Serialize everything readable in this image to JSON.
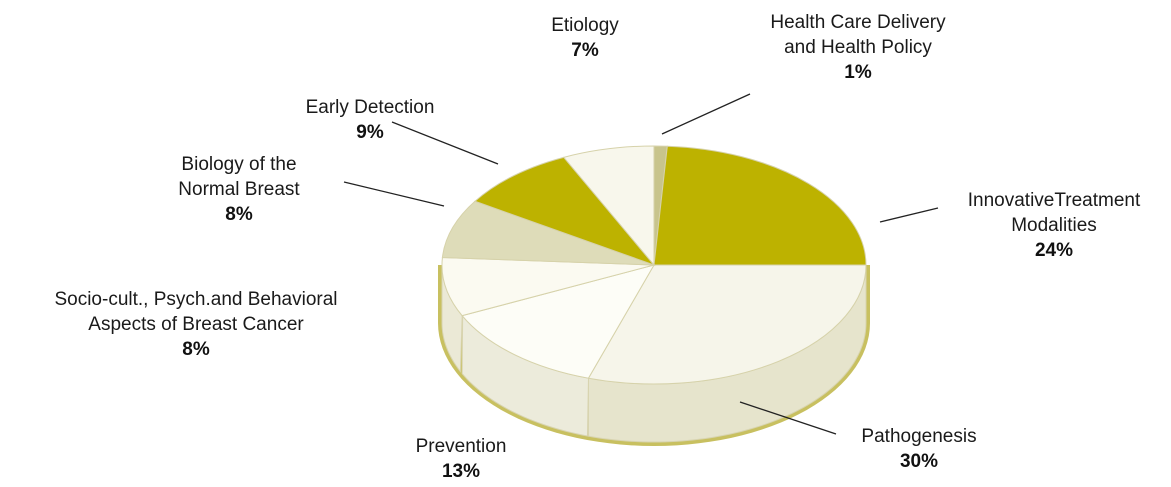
{
  "chart_data": {
    "type": "pie",
    "title": "",
    "slices": [
      {
        "name": "Health Care Delivery and Health Policy",
        "label_lines": [
          "Health Care Delivery",
          "and Health Policy"
        ],
        "value": 1,
        "value_label": "1%",
        "color": "#c8c48c",
        "side_color": "#a7a162"
      },
      {
        "name": "Innovative Treatment Modalities",
        "label_lines": [
          "InnovativeTreatment",
          "Modalities"
        ],
        "value": 24,
        "value_label": "24%",
        "color": "#bdb200",
        "side_color": "#968c00"
      },
      {
        "name": "Pathogenesis",
        "label_lines": [
          "Pathogenesis"
        ],
        "value": 30,
        "value_label": "30%",
        "color": "#f6f5ea",
        "side_color": "#e6e4cc"
      },
      {
        "name": "Prevention",
        "label_lines": [
          "Prevention"
        ],
        "value": 13,
        "value_label": "13%",
        "color": "#fdfdf7",
        "side_color": "#ecebdb"
      },
      {
        "name": "Socio-cult., Psych.and Behavioral Aspects of Breast Cancer",
        "label_lines": [
          "Socio-cult., Psych.and Behavioral",
          "Aspects of Breast Cancer"
        ],
        "value": 8,
        "value_label": "8%",
        "color": "#fbfaf1",
        "side_color": "#ebe9d6"
      },
      {
        "name": "Biology of the Normal Breast",
        "label_lines": [
          "Biology of the",
          "Normal Breast"
        ],
        "value": 8,
        "value_label": "8%",
        "color": "#dedcb9",
        "side_color": "#c5c296"
      },
      {
        "name": "Early Detection",
        "label_lines": [
          "Early Detection"
        ],
        "value": 9,
        "value_label": "9%",
        "color": "#bdb200",
        "side_color": "#968c00"
      },
      {
        "name": "Etiology",
        "label_lines": [
          "Etiology"
        ],
        "value": 7,
        "value_label": "7%",
        "color": "#f8f7ec",
        "side_color": "#e4e2c8"
      }
    ]
  }
}
